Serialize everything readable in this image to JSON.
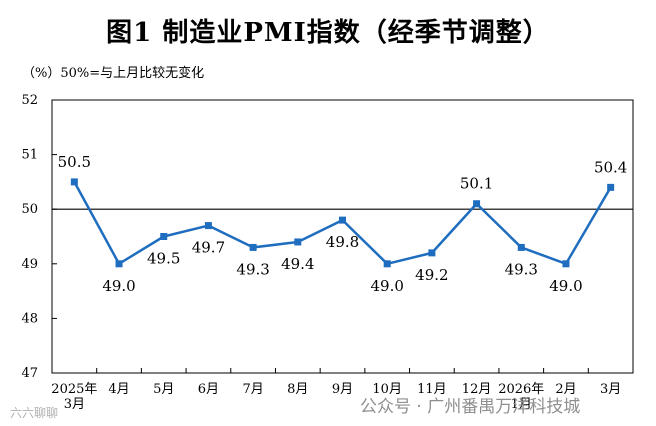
{
  "title": "图1  制造业PMI指数（经季节调整）",
  "subtitle": "（%）50%=与上月比较无变化",
  "watermarks": {
    "left": "六六聊聊",
    "right": "公众号 · 广州番禺万洋科技城"
  },
  "chart_data": {
    "type": "line",
    "title": "图1  制造业PMI指数（经季节调整）",
    "ylabel": "（%）50%=与上月比较无变化",
    "ylim": [
      47,
      52
    ],
    "yticks": [
      47,
      48,
      49,
      50,
      51,
      52
    ],
    "reference_line": 50,
    "grid": false,
    "color": "#1f6dbf",
    "categories": [
      [
        "2025年",
        "3月"
      ],
      [
        "4月"
      ],
      [
        "5月"
      ],
      [
        "6月"
      ],
      [
        "7月"
      ],
      [
        "8月"
      ],
      [
        "9月"
      ],
      [
        "10月"
      ],
      [
        "11月"
      ],
      [
        "12月"
      ],
      [
        "2026年",
        "1月"
      ],
      [
        "2月"
      ],
      [
        "3月"
      ]
    ],
    "values": [
      50.5,
      49.0,
      49.5,
      49.7,
      49.3,
      49.4,
      49.8,
      49.0,
      49.2,
      50.1,
      49.3,
      49.0,
      50.4
    ],
    "labels": [
      "50.5",
      "49.0",
      "49.5",
      "49.7",
      "49.3",
      "49.4",
      "49.8",
      "49.0",
      "49.2",
      "50.1",
      "49.3",
      "49.0",
      "50.4"
    ],
    "label_position": [
      "above",
      "below",
      "below",
      "below",
      "below",
      "below",
      "below",
      "below",
      "below",
      "above",
      "below",
      "below",
      "above"
    ]
  }
}
